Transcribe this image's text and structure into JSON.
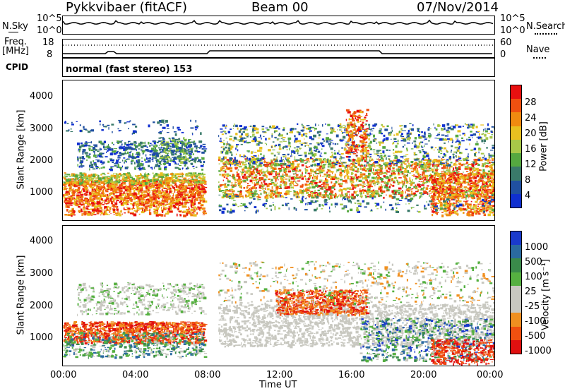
{
  "header": {
    "radar": "Pykkvibaer (fitACF)",
    "beam": "Beam 00",
    "date": "07/Nov/2014"
  },
  "top_panels": {
    "nsky_label": "N.Sky",
    "nsky_ticks": [
      "10^5",
      "10^0"
    ],
    "nsearch_label": "N.Search",
    "nsearch_ticks": [
      "10^5",
      "10^0"
    ],
    "freq_label": "Freq.",
    "freq_unit": "[MHz]",
    "freq_ticks": [
      "18",
      "8"
    ],
    "nave_label": "Nave",
    "nave_ticks": [
      "60",
      "0"
    ],
    "cpid_label": "CPID",
    "cpid_text": "normal (fast stereo) 153"
  },
  "colors": {
    "power_scale": [
      "#1030d0",
      "#2050a0",
      "#3a7a6a",
      "#55a840",
      "#a8c848",
      "#e8c020",
      "#f08a10",
      "#f05010",
      "#e81010"
    ],
    "velocity_scale": [
      "#e01010",
      "#f05010",
      "#f09020",
      "#c8c8c0",
      "#c8c8c0",
      "#55b040",
      "#3a8a4a",
      "#2a6aa0",
      "#1a3acc"
    ]
  },
  "chart_data": [
    {
      "type": "heatmap",
      "title": "",
      "ylabel": "Slant Range [km]",
      "y_ticks": [
        "4000",
        "3000",
        "2000",
        "1000"
      ],
      "ylim": [
        200,
        4600
      ],
      "xlim": [
        "00:00",
        "24:00"
      ],
      "colorbar": {
        "label": "Power [dB]",
        "ticks": [
          "28",
          "24",
          "20",
          "16",
          "12",
          "8",
          "4"
        ],
        "range": [
          0,
          32
        ]
      }
    },
    {
      "type": "heatmap",
      "title": "",
      "ylabel": "Slant Range [km]",
      "y_ticks": [
        "4000",
        "3000",
        "2000",
        "1000"
      ],
      "ylim": [
        200,
        4600
      ],
      "xlabel": "Time UT",
      "x_ticks": [
        "00:00",
        "04:00",
        "08:00",
        "12:00",
        "16:00",
        "20:00",
        "00:00"
      ],
      "colorbar": {
        "label": "Velocity [m s⁻¹]",
        "ticks": [
          "1000",
          "500",
          "100",
          "25",
          "-25",
          "-100",
          "-500",
          "-1000"
        ]
      }
    }
  ]
}
